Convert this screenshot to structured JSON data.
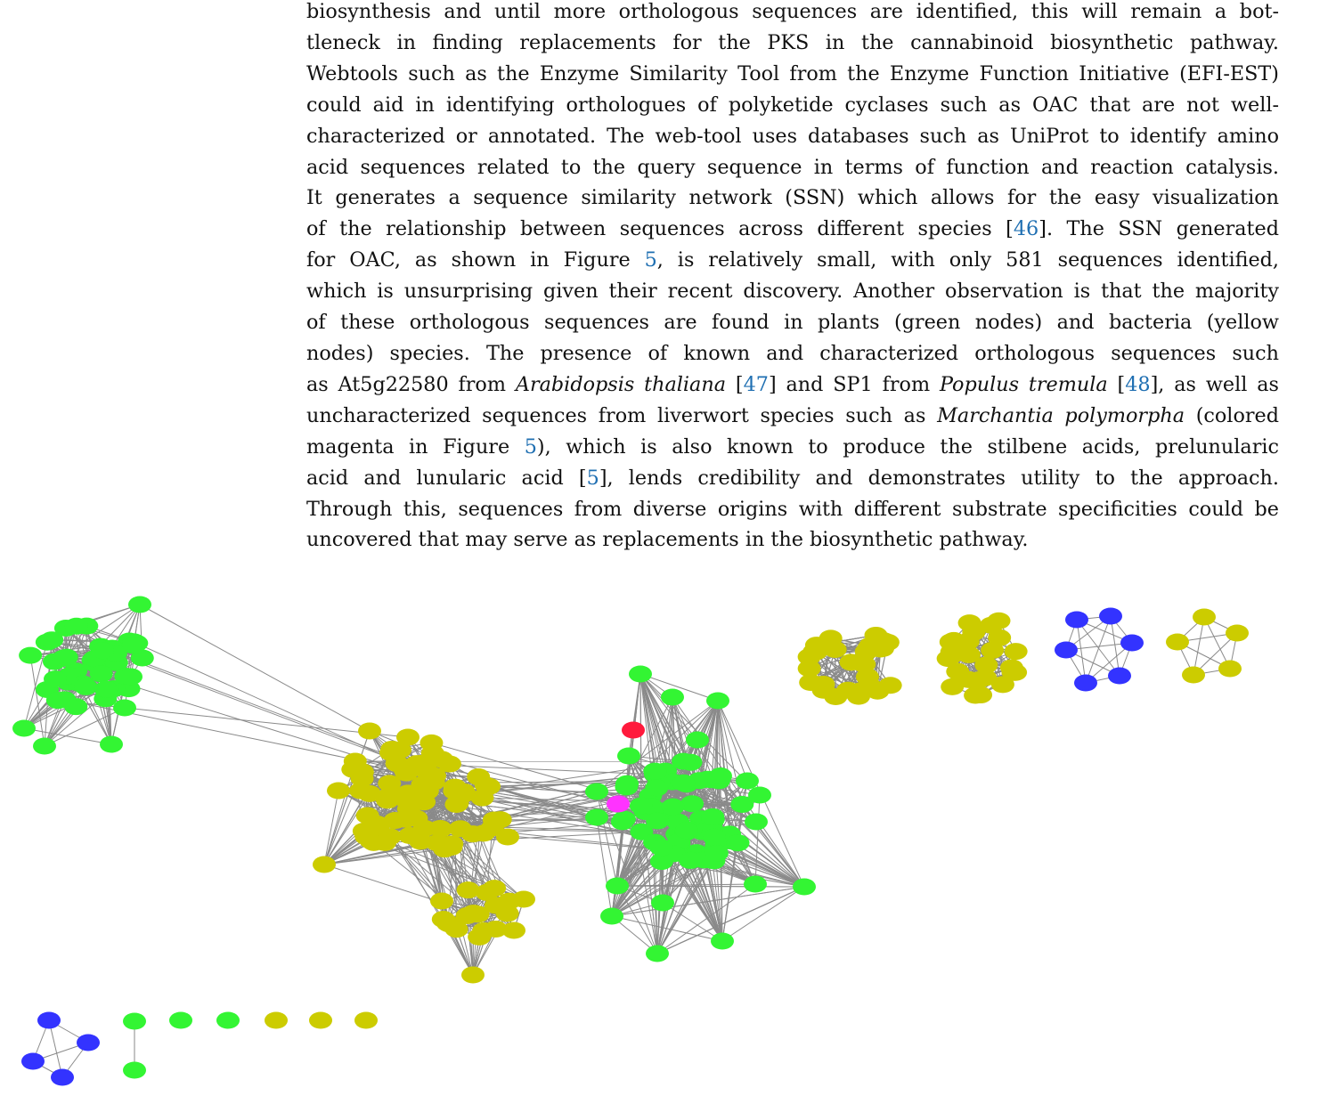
{
  "body_text": {
    "lines": [
      [
        {
          "t": "biosynthesis and until more orthologous sequences are identified, this will remain a bot-"
        }
      ],
      [
        {
          "t": "tleneck in finding replacements for the PKS in the cannabinoid biosynthetic pathway."
        }
      ],
      [
        {
          "t": "Webtools such as the Enzyme Similarity Tool from the Enzyme Function Initiative (EFI-EST)"
        }
      ],
      [
        {
          "t": "could aid in identifying orthologues of polyketide cyclases such as OAC that are not well-"
        }
      ],
      [
        {
          "t": "characterized or annotated. The web-tool uses databases such as UniProt to identify amino"
        }
      ],
      [
        {
          "t": "acid sequences related to the query sequence in terms of function and reaction catalysis."
        }
      ],
      [
        {
          "t": "It generates a sequence similarity network (SSN) which allows for the easy visualization"
        }
      ],
      [
        {
          "t": "of the relationship between sequences across different species ["
        },
        {
          "t": "46",
          "s": "ref"
        },
        {
          "t": "]. The SSN generated"
        }
      ],
      [
        {
          "t": "for OAC, as shown in Figure "
        },
        {
          "t": "5",
          "s": "ref"
        },
        {
          "t": ", is relatively small, with only 581 sequences identified,"
        }
      ],
      [
        {
          "t": "which is unsurprising given their recent discovery. Another observation is that the majority"
        }
      ],
      [
        {
          "t": "of these orthologous sequences are found in plants (green nodes) and bacteria (yellow"
        }
      ],
      [
        {
          "t": "nodes) species. The presence of known and characterized orthologous sequences such"
        }
      ],
      [
        {
          "t": "as At5g22580 from "
        },
        {
          "t": "Arabidopsis thaliana",
          "s": "i"
        },
        {
          "t": " ["
        },
        {
          "t": "47",
          "s": "ref"
        },
        {
          "t": "] and SP1 from "
        },
        {
          "t": "Populus tremula",
          "s": "i"
        },
        {
          "t": " ["
        },
        {
          "t": "48",
          "s": "ref"
        },
        {
          "t": "], as well as"
        }
      ],
      [
        {
          "t": "uncharacterized sequences from liverwort species such as "
        },
        {
          "t": "Marchantia polymorpha",
          "s": "i"
        },
        {
          "t": " (colored"
        }
      ],
      [
        {
          "t": "magenta in Figure "
        },
        {
          "t": "5",
          "s": "ref"
        },
        {
          "t": "), which is also known to produce the stilbene acids, prelunularic"
        }
      ],
      [
        {
          "t": "acid and lunularic acid ["
        },
        {
          "t": "5",
          "s": "ref"
        },
        {
          "t": "], lends credibility and demonstrates utility to the approach."
        }
      ],
      [
        {
          "t": "Through this, sequences from diverse origins with different substrate specificities could be"
        }
      ],
      [
        {
          "t": "uncovered that may serve as replacements in the biosynthetic pathway."
        }
      ]
    ]
  },
  "figure": {
    "colors": {
      "plant": "#33f533",
      "bacteria": "#cccc00",
      "other": "#3333ff",
      "characterized_red": "#ff1a3c",
      "marchantia_magenta": "#ff33ff",
      "edge": "#8a8a8a"
    }
  }
}
